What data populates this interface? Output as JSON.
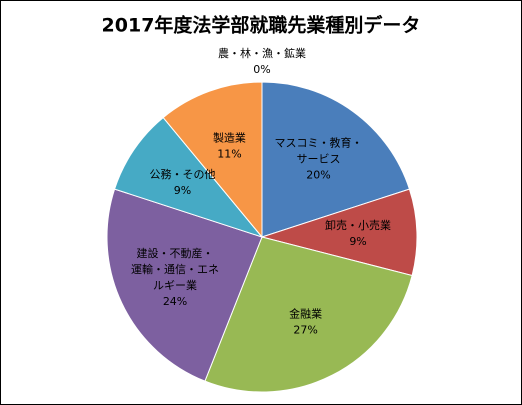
{
  "chart_data": {
    "type": "pie",
    "title": "2017年度法学部就職先業種別データ",
    "categories": [
      "農・林・漁・鉱業",
      "マスコミ・教育・\nサービス",
      "卸売・小売業",
      "金融業",
      "建設・不動産・\n運輸・通信・エネ\nルギー業",
      "公務・その他",
      "製造業"
    ],
    "values": [
      0,
      20,
      9,
      27,
      24,
      9,
      11
    ],
    "value_labels": [
      "0%",
      "20%",
      "9%",
      "27%",
      "24%",
      "9%",
      "11%"
    ],
    "colors": [
      "#888888",
      "#4a7ebb",
      "#be4b48",
      "#98b954",
      "#7d60a0",
      "#46aac5",
      "#f79646"
    ]
  }
}
